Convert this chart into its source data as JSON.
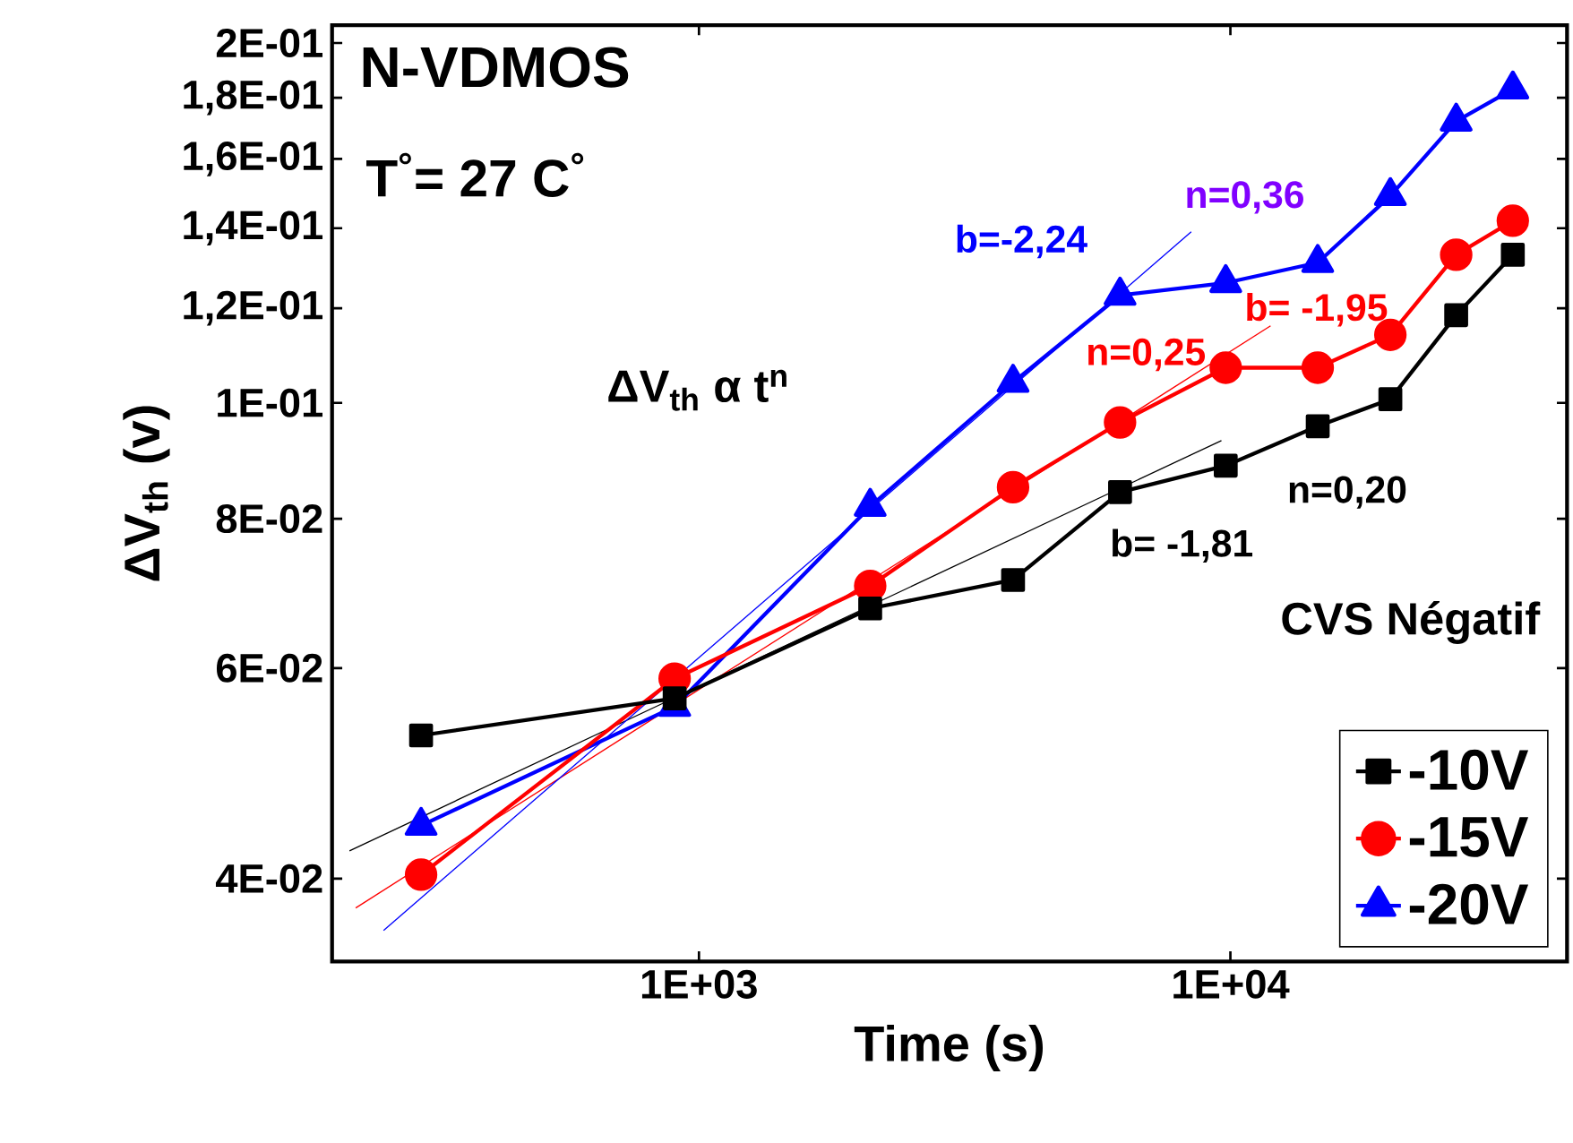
{
  "chart_data": {
    "type": "line",
    "xlabel": "Time (s)",
    "ylabel": "ΔV$_{th}$ (v)",
    "legend_title": "CVS Négatif",
    "log": "xy",
    "legend": "bottom right",
    "x": [
      300,
      900,
      2100,
      3900,
      6200,
      9800,
      14600,
      20000,
      26600,
      34000
    ],
    "series": [
      {
        "name": "-10V",
        "color": "#000000",
        "marker": "square",
        "values": [
          0.0527,
          0.0566,
          0.0673,
          0.0711,
          0.0842,
          0.0886,
          0.0956,
          0.1007,
          0.1184,
          0.133
        ]
      },
      {
        "name": "-15V",
        "color": "#ff0000",
        "marker": "circle",
        "values": [
          0.0403,
          0.0588,
          0.0703,
          0.085,
          0.0963,
          0.107,
          0.107,
          0.114,
          0.133,
          0.142
        ]
      },
      {
        "name": "-20V",
        "color": "#0000ff",
        "marker": "triangle",
        "values": [
          0.0443,
          0.0557,
          0.0819,
          0.104,
          0.123,
          0.126,
          0.131,
          0.149,
          0.172,
          0.183
        ]
      },
      {
        "type": "line",
        "color": "#000000",
        "marker": "none",
        "x": [
          220,
          9620
        ],
        "values": [
          0.0422,
          0.093
        ]
      },
      {
        "type": "line",
        "color": "#ff0000",
        "marker": "none",
        "x": [
          226,
          11900
        ],
        "values": [
          0.0378,
          0.116
        ]
      },
      {
        "type": "line",
        "color": "#0000ff",
        "marker": "none",
        "x": [
          255,
          8440
        ],
        "values": [
          0.0362,
          0.139
        ]
      }
    ],
    "xlim": [
      204,
      43000
    ],
    "ylim": [
      0.0341,
      0.207
    ],
    "xticks": [
      {
        "value": 1000,
        "label": "1E+03"
      },
      {
        "value": 10000,
        "label": "1E+04"
      }
    ],
    "yticks": [
      {
        "value": 0.04,
        "label": "4E-02"
      },
      {
        "value": 0.06,
        "label": "6E-02"
      },
      {
        "value": 0.08,
        "label": "8E-02"
      },
      {
        "value": 0.1,
        "label": "1E-01"
      },
      {
        "value": 0.12,
        "label": "1,2E-01"
      },
      {
        "value": 0.14,
        "label": "1,4E-01"
      },
      {
        "value": 0.16,
        "label": "1,6E-01"
      },
      {
        "value": 0.18,
        "label": "1,8E-01"
      },
      {
        "value": 0.2,
        "label": "2E-01"
      }
    ],
    "annotations": [
      "N-VDMOS",
      "T$^{°}$= 27 C$^{°}$",
      "ΔV$_{th}$ α t$^{n}$",
      "b=-2,24",
      "n=0,36",
      "n=0,25",
      "b= -1,95",
      "n=0,20",
      "b= -1,81"
    ]
  }
}
